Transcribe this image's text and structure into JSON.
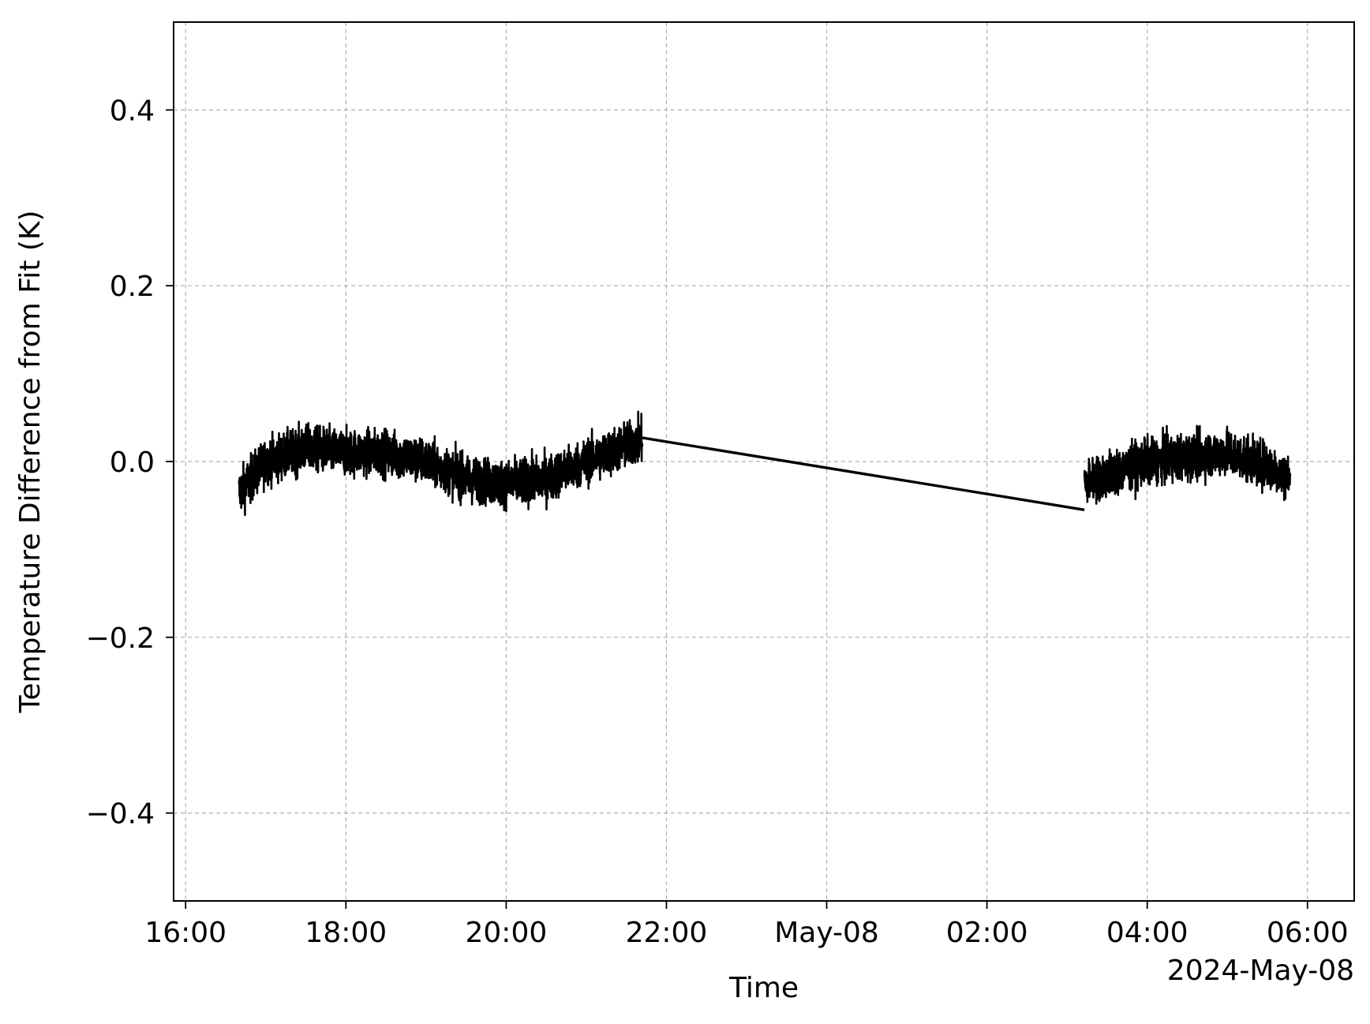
{
  "chart_data": {
    "type": "line",
    "xlabel": "Time",
    "ylabel": "Temperature Difference from Fit (K)",
    "x_offset_label": "2024-May-08",
    "x_axis_type": "datetime",
    "xlim": [
      "2024-05-07T15:51",
      "2024-05-08T06:35"
    ],
    "ylim": [
      -0.5,
      0.5
    ],
    "x_ticks": [
      {
        "t": "2024-05-07T16:00",
        "label": "16:00"
      },
      {
        "t": "2024-05-07T18:00",
        "label": "18:00"
      },
      {
        "t": "2024-05-07T20:00",
        "label": "20:00"
      },
      {
        "t": "2024-05-07T22:00",
        "label": "22:00"
      },
      {
        "t": "2024-05-08T00:00",
        "label": "May-08"
      },
      {
        "t": "2024-05-08T02:00",
        "label": "02:00"
      },
      {
        "t": "2024-05-08T04:00",
        "label": "04:00"
      },
      {
        "t": "2024-05-08T06:00",
        "label": "06:00"
      }
    ],
    "y_ticks": [
      {
        "v": 0.4,
        "label": "0.4"
      },
      {
        "v": 0.2,
        "label": "0.2"
      },
      {
        "v": 0.0,
        "label": "0.0"
      },
      {
        "v": -0.2,
        "label": "−0.2"
      },
      {
        "v": -0.4,
        "label": "−0.4"
      }
    ],
    "grid": true,
    "line_color": "#000000",
    "series": [
      {
        "segments": [
          {
            "start": "2024-05-07T16:40",
            "end": "2024-05-07T21:42",
            "trend": [
              [
                "2024-05-07T16:40",
                -0.035
              ],
              [
                "2024-05-07T17:00",
                0.0
              ],
              [
                "2024-05-07T17:30",
                0.015
              ],
              [
                "2024-05-07T18:00",
                0.01
              ],
              [
                "2024-05-07T18:30",
                0.01
              ],
              [
                "2024-05-07T19:00",
                0.0
              ],
              [
                "2024-05-07T19:30",
                -0.02
              ],
              [
                "2024-05-07T20:00",
                -0.025
              ],
              [
                "2024-05-07T20:30",
                -0.02
              ],
              [
                "2024-05-07T21:00",
                0.0
              ],
              [
                "2024-05-07T21:42",
                0.025
              ]
            ],
            "band_min": -0.08,
            "band_max": 0.09
          },
          {
            "start": "2024-05-08T03:13",
            "end": "2024-05-08T05:47",
            "trend": [
              [
                "2024-05-08T03:13",
                -0.025
              ],
              [
                "2024-05-08T03:40",
                -0.01
              ],
              [
                "2024-05-08T04:00",
                0.0
              ],
              [
                "2024-05-08T04:30",
                0.005
              ],
              [
                "2024-05-08T05:00",
                0.01
              ],
              [
                "2024-05-08T05:30",
                -0.005
              ],
              [
                "2024-05-08T05:47",
                -0.02
              ]
            ],
            "band_min": -0.085,
            "band_max": 0.06
          }
        ],
        "bridge": [
          [
            "2024-05-07T21:42",
            0.027
          ],
          [
            "2024-05-08T03:13",
            -0.055
          ]
        ]
      }
    ]
  }
}
